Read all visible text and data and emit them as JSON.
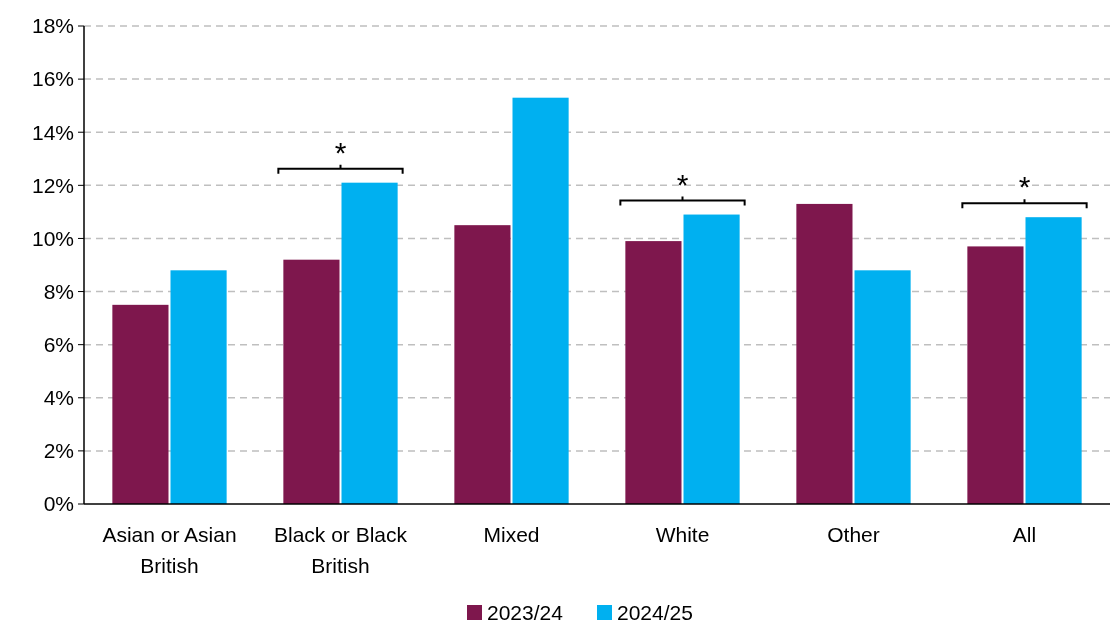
{
  "chart_data": {
    "type": "bar",
    "categories": [
      "Asian or Asian British",
      "Black or Black British",
      "Mixed",
      "White",
      "Other",
      "All"
    ],
    "series": [
      {
        "name": "2023/24",
        "color": "#7e174d",
        "values": [
          7.5,
          9.2,
          10.5,
          9.9,
          11.3,
          9.7
        ]
      },
      {
        "name": "2024/25",
        "color": "#00b0f0",
        "values": [
          8.8,
          12.1,
          15.3,
          10.9,
          8.8,
          10.8
        ]
      }
    ],
    "ylim": [
      0,
      18
    ],
    "yticks": [
      {
        "value": 0,
        "label": "0%"
      },
      {
        "value": 2,
        "label": "2%"
      },
      {
        "value": 4,
        "label": "4%"
      },
      {
        "value": 6,
        "label": "6%"
      },
      {
        "value": 8,
        "label": "8%"
      },
      {
        "value": 10,
        "label": "10%"
      },
      {
        "value": 12,
        "label": "12%"
      },
      {
        "value": 14,
        "label": "14%"
      },
      {
        "value": 16,
        "label": "16%"
      },
      {
        "value": 18,
        "label": "18%"
      }
    ],
    "grid": "y",
    "legend": "bottom",
    "annotations": [
      "*",
      "*",
      "*"
    ]
  }
}
